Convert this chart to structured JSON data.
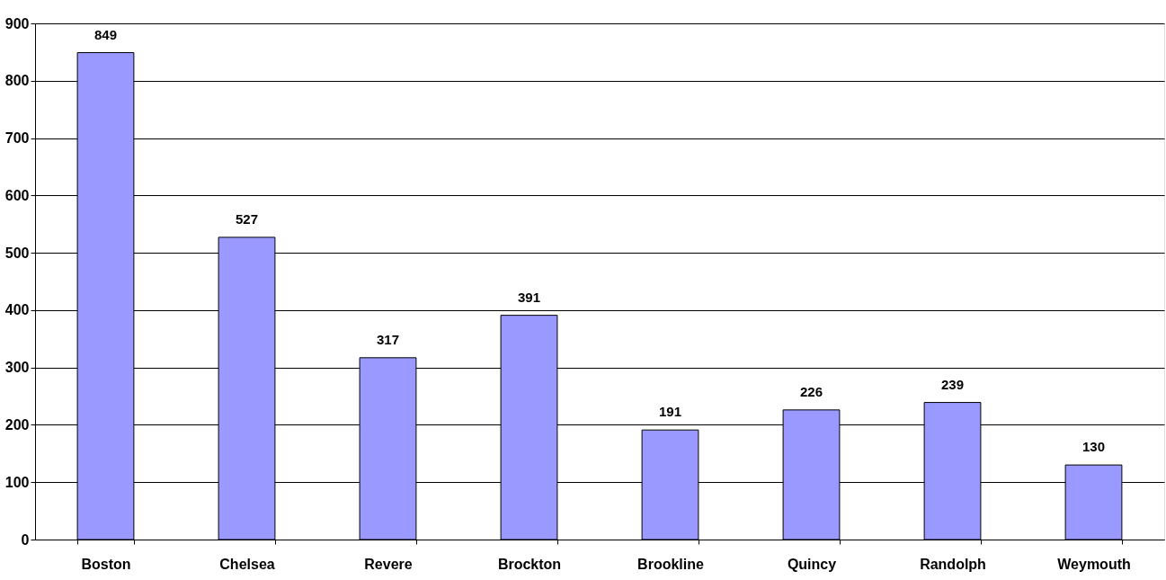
{
  "chart_data": {
    "type": "bar",
    "categories": [
      "Boston",
      "Chelsea",
      "Revere",
      "Brockton",
      "Brookline",
      "Quincy",
      "Randolph",
      "Weymouth"
    ],
    "values": [
      849,
      527,
      317,
      391,
      191,
      226,
      239,
      130
    ],
    "color": "#9999ff",
    "ylim": [
      0,
      900
    ],
    "yticks": [
      0,
      100,
      200,
      300,
      400,
      500,
      600,
      700,
      800,
      900
    ],
    "grid": "y",
    "data_labels": true
  }
}
